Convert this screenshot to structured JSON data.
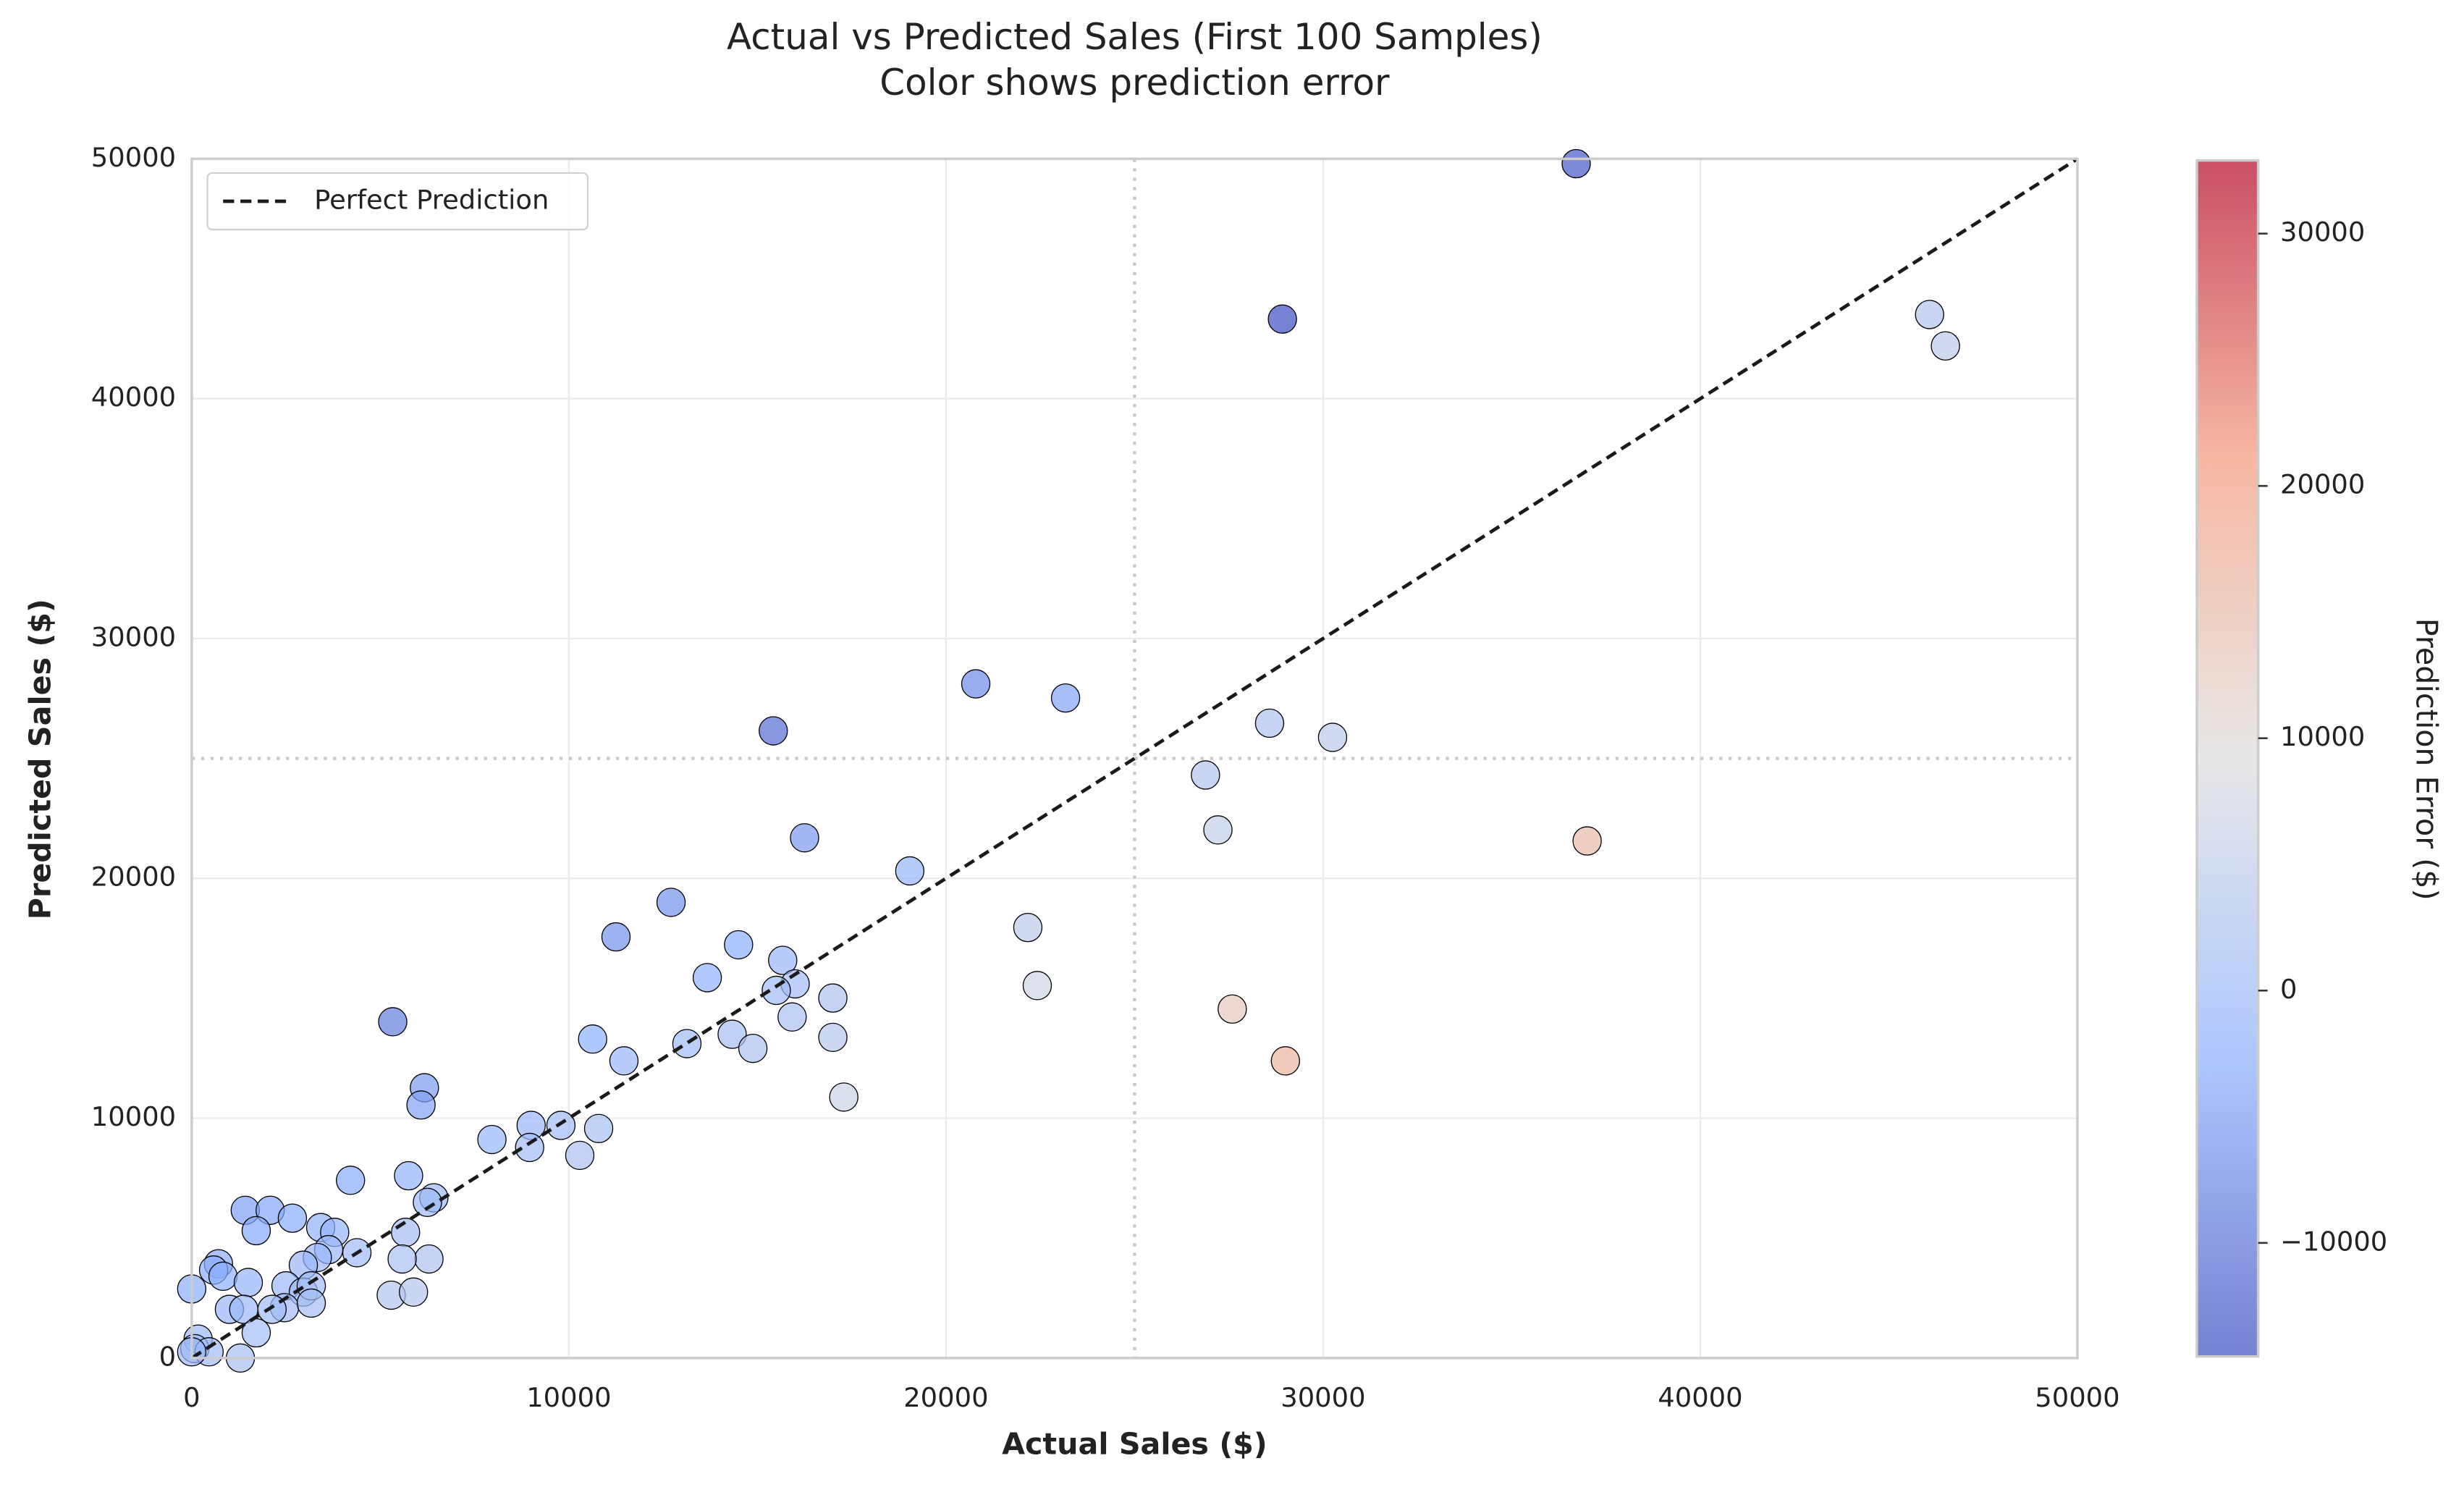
{
  "chart_data": {
    "type": "scatter",
    "title": "Actual vs Predicted Sales (First 100 Samples)",
    "subtitle": "Color shows prediction error",
    "xlabel": "Actual Sales ($)",
    "ylabel": "Predicted Sales ($)",
    "xlim": [
      0,
      50000
    ],
    "ylim": [
      0,
      50000
    ],
    "xticks": [
      0,
      10000,
      20000,
      30000,
      40000,
      50000
    ],
    "yticks": [
      0,
      10000,
      20000,
      30000,
      40000,
      50000
    ],
    "grid": true,
    "legend": "upper left",
    "colormap": "coolwarm",
    "x": [
      36710,
      28920,
      46080,
      46500,
      20790,
      23170,
      15420,
      28580,
      30250,
      26880,
      37000,
      27210,
      16250,
      19040,
      12710,
      22170,
      11250,
      14500,
      15670,
      22420,
      13670,
      16000,
      15500,
      17000,
      27590,
      5330,
      15920,
      10630,
      17000,
      14330,
      13130,
      14880,
      11460,
      29000,
      6170,
      6080,
      17290,
      7960,
      9000,
      9790,
      10790,
      8960,
      10290,
      4210,
      5750,
      6420,
      6250,
      1420,
      2080,
      2670,
      3420,
      3790,
      1710,
      5670,
      3630,
      4380,
      3330,
      710,
      580,
      830,
      2960,
      6290,
      5580,
      1500,
      0,
      2500,
      2960,
      3170,
      5290,
      5880,
      1000,
      1380,
      2460,
      3170,
      2130,
      1710,
      170,
      80,
      460,
      1290,
      0
    ],
    "y": [
      49800,
      43320,
      43510,
      42200,
      28110,
      27520,
      26150,
      26470,
      25880,
      24310,
      21560,
      22020,
      21690,
      20310,
      19000,
      17950,
      17560,
      17230,
      16580,
      15530,
      15860,
      15600,
      15330,
      15010,
      14550,
      14020,
      14220,
      13300,
      13370,
      13500,
      13110,
      12910,
      12390,
      12390,
      11270,
      10550,
      10880,
      9110,
      9700,
      9700,
      9570,
      8780,
      8450,
      7410,
      7600,
      6680,
      6490,
      6160,
      6160,
      5830,
      5440,
      5240,
      5310,
      5240,
      4520,
      4390,
      4190,
      3930,
      3670,
      3410,
      3870,
      4130,
      4130,
      3150,
      2880,
      3010,
      2750,
      3010,
      2620,
      2750,
      2030,
      2030,
      2100,
      2290,
      2030,
      1050,
      790,
      390,
      260,
      0,
      260
    ],
    "c": [
      -13090,
      -14400,
      2570,
      4300,
      -7320,
      -4350,
      -10730,
      2110,
      4370,
      2570,
      15440,
      5190,
      -5440,
      -1270,
      -6290,
      4220,
      -6310,
      -2730,
      -910,
      6890,
      -2190,
      400,
      170,
      1990,
      13040,
      -8690,
      1700,
      -2670,
      3630,
      830,
      20,
      1970,
      -930,
      16610,
      -5100,
      -4470,
      6410,
      -1150,
      -700,
      90,
      1220,
      180,
      1840,
      -3200,
      -1850,
      -260,
      -240,
      -4740,
      -4080,
      -3160,
      -2020,
      -1450,
      -3600,
      430,
      -890,
      -10,
      -860,
      -3220,
      -3090,
      -2580,
      -910,
      2160,
      1450,
      -1650,
      -2880,
      -510,
      210,
      160,
      2670,
      3130,
      -1030,
      -650,
      360,
      880,
      100,
      660,
      -620,
      -310,
      200,
      1290,
      -260
    ],
    "clim": [
      -14500,
      32900
    ],
    "colorbar_label": "Prediction Error ($)",
    "colorbar_ticks": [
      {
        "value": -10000,
        "label": "−10000"
      },
      0,
      10000,
      20000,
      30000
    ],
    "lines": [
      {
        "name": "Perfect Prediction",
        "color": "#1a1a1a",
        "x": [
          0,
          50000
        ],
        "y": [
          0,
          50000
        ]
      }
    ],
    "vlines": [
      25000
    ],
    "hlines": [
      25000
    ]
  }
}
